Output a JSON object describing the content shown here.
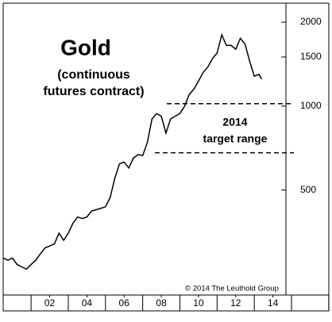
{
  "chart_data": {
    "type": "line",
    "title": "Gold",
    "subtitle": [
      "(continuous",
      "futures contract)"
    ],
    "annotation": [
      "2014",
      "target range"
    ],
    "target_range": [
      680,
      1020
    ],
    "source": "© 2014 The Leuthold Group",
    "x": [
      2000.0,
      2000.25,
      2000.5,
      2000.75,
      2001.0,
      2001.25,
      2001.5,
      2001.75,
      2002.0,
      2002.25,
      2002.5,
      2002.75,
      2003.0,
      2003.25,
      2003.5,
      2003.75,
      2004.0,
      2004.25,
      2004.5,
      2004.75,
      2005.0,
      2005.25,
      2005.5,
      2005.75,
      2006.0,
      2006.25,
      2006.5,
      2006.75,
      2007.0,
      2007.25,
      2007.5,
      2007.75,
      2008.0,
      2008.25,
      2008.5,
      2008.75,
      2009.0,
      2009.25,
      2009.5,
      2009.75,
      2010.0,
      2010.25,
      2010.5,
      2010.75,
      2011.0,
      2011.25,
      2011.5,
      2011.75,
      2012.0,
      2012.25,
      2012.5,
      2012.75,
      2013.0,
      2013.25,
      2013.5,
      2013.75,
      2013.9
    ],
    "values": [
      285,
      280,
      285,
      270,
      265,
      260,
      270,
      280,
      295,
      310,
      315,
      320,
      350,
      330,
      350,
      380,
      400,
      395,
      400,
      420,
      425,
      430,
      435,
      470,
      550,
      620,
      630,
      600,
      650,
      670,
      665,
      740,
      900,
      940,
      920,
      800,
      900,
      920,
      940,
      1000,
      1100,
      1150,
      1230,
      1320,
      1380,
      1480,
      1550,
      1800,
      1650,
      1650,
      1600,
      1750,
      1670,
      1450,
      1280,
      1300,
      1250
    ],
    "color": "#000000",
    "log_scale": true,
    "grid": false,
    "xlim": [
      2000,
      2015.2
    ],
    "xticks": [
      {
        "value": 2002.5,
        "label": "02"
      },
      {
        "value": 2004.5,
        "label": "04"
      },
      {
        "value": 2006.5,
        "label": "06"
      },
      {
        "value": 2008.5,
        "label": "08"
      },
      {
        "value": 2010.5,
        "label": "10"
      },
      {
        "value": 2012.5,
        "label": "12"
      },
      {
        "value": 2014.5,
        "label": "14"
      }
    ],
    "ylim": [
      210,
      2340
    ],
    "yticks": [
      500,
      1000,
      1500,
      2000
    ]
  }
}
